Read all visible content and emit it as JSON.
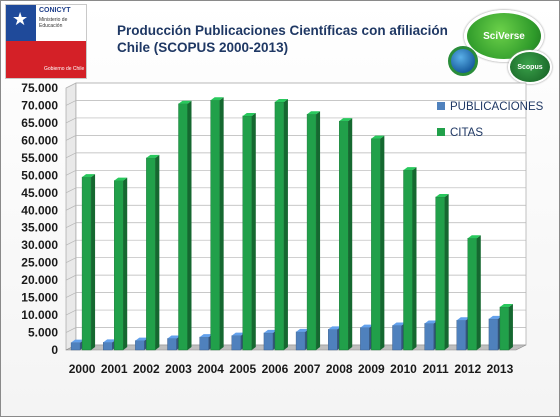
{
  "header": {
    "title_line1": "Producción Publicaciones Científicas con afiliación",
    "title_line2": "Chile (SCOPUS 2000-2013)"
  },
  "logo": {
    "org": "CONICYT",
    "subtitle_line1": "Ministerio de",
    "subtitle_line2": "Educación",
    "footer": "Gobierno de Chile"
  },
  "badges": {
    "sciverse": "SciVerse",
    "scopus": "Scopus"
  },
  "colors": {
    "publicaciones": "#4f81bd",
    "citas": "#21a04a"
  },
  "chart_data": {
    "type": "bar",
    "categories": [
      "2000",
      "2001",
      "2002",
      "2003",
      "2004",
      "2005",
      "2006",
      "2007",
      "2008",
      "2009",
      "2010",
      "2011",
      "2012",
      "2013"
    ],
    "series": [
      {
        "name": "PUBLICACIONES",
        "values": [
          2100,
          2200,
          2700,
          3300,
          3700,
          4100,
          4900,
          5200,
          5900,
          6400,
          7000,
          7600,
          8500,
          8900
        ]
      },
      {
        "name": "CITAS",
        "values": [
          49500,
          48500,
          55000,
          70500,
          71500,
          67000,
          71000,
          67500,
          65500,
          60500,
          51500,
          43800,
          32000,
          12300
        ]
      }
    ],
    "ylim": [
      0,
      75000
    ],
    "yticks": [
      "0",
      "5.000",
      "10.000",
      "15.000",
      "20.000",
      "25.000",
      "30.000",
      "35.000",
      "40.000",
      "45.000",
      "50.000",
      "55.000",
      "60.000",
      "65.000",
      "70.000",
      "75.000"
    ],
    "legend_position": "right",
    "grid": true
  }
}
